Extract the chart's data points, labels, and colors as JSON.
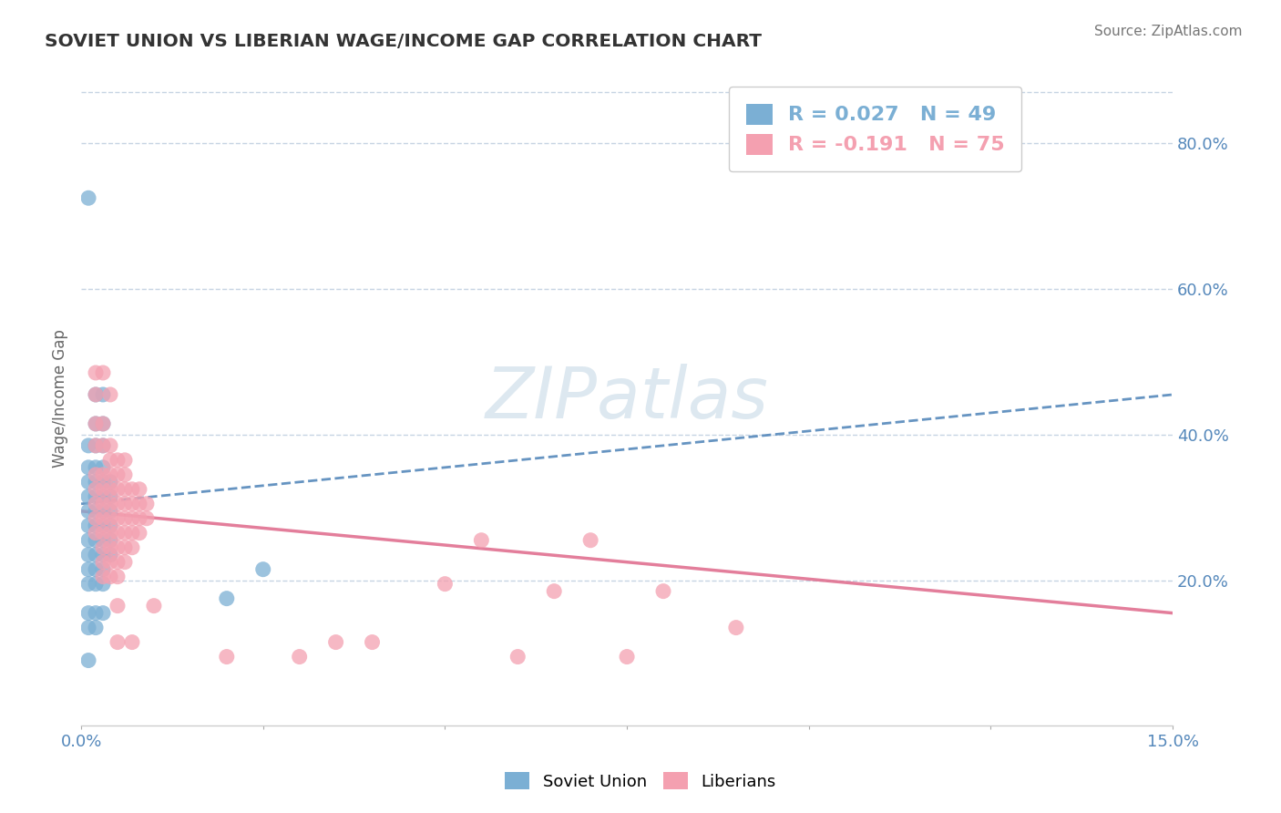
{
  "title": "SOVIET UNION VS LIBERIAN WAGE/INCOME GAP CORRELATION CHART",
  "source": "Source: ZipAtlas.com",
  "ylabel": "Wage/Income Gap",
  "xlim": [
    0.0,
    0.15
  ],
  "ylim": [
    0.0,
    0.9
  ],
  "soviet_color": "#7bafd4",
  "liberian_color": "#f4a0b0",
  "soviet_line_color": "#5588bb",
  "liberian_line_color": "#e07090",
  "soviet_R": 0.027,
  "soviet_N": 49,
  "liberian_R": -0.191,
  "liberian_N": 75,
  "background_color": "#ffffff",
  "grid_color": "#c0d0e0",
  "watermark_color": "#dde8f0",
  "soviet_trend": [
    0.0,
    0.15,
    0.305,
    0.455
  ],
  "liberian_trend": [
    0.0,
    0.15,
    0.295,
    0.155
  ],
  "soviet_points": [
    [
      0.001,
      0.725
    ],
    [
      0.002,
      0.455
    ],
    [
      0.003,
      0.455
    ],
    [
      0.002,
      0.415
    ],
    [
      0.003,
      0.415
    ],
    [
      0.001,
      0.385
    ],
    [
      0.002,
      0.385
    ],
    [
      0.003,
      0.385
    ],
    [
      0.001,
      0.355
    ],
    [
      0.002,
      0.355
    ],
    [
      0.003,
      0.355
    ],
    [
      0.001,
      0.335
    ],
    [
      0.002,
      0.335
    ],
    [
      0.003,
      0.335
    ],
    [
      0.004,
      0.335
    ],
    [
      0.001,
      0.315
    ],
    [
      0.002,
      0.315
    ],
    [
      0.003,
      0.315
    ],
    [
      0.004,
      0.315
    ],
    [
      0.001,
      0.295
    ],
    [
      0.002,
      0.295
    ],
    [
      0.003,
      0.295
    ],
    [
      0.004,
      0.295
    ],
    [
      0.001,
      0.275
    ],
    [
      0.002,
      0.275
    ],
    [
      0.003,
      0.275
    ],
    [
      0.004,
      0.275
    ],
    [
      0.001,
      0.255
    ],
    [
      0.002,
      0.255
    ],
    [
      0.003,
      0.255
    ],
    [
      0.004,
      0.255
    ],
    [
      0.001,
      0.235
    ],
    [
      0.002,
      0.235
    ],
    [
      0.003,
      0.235
    ],
    [
      0.004,
      0.235
    ],
    [
      0.001,
      0.215
    ],
    [
      0.002,
      0.215
    ],
    [
      0.003,
      0.215
    ],
    [
      0.001,
      0.195
    ],
    [
      0.002,
      0.195
    ],
    [
      0.003,
      0.195
    ],
    [
      0.02,
      0.175
    ],
    [
      0.001,
      0.155
    ],
    [
      0.002,
      0.155
    ],
    [
      0.003,
      0.155
    ],
    [
      0.001,
      0.135
    ],
    [
      0.002,
      0.135
    ],
    [
      0.001,
      0.09
    ],
    [
      0.025,
      0.215
    ]
  ],
  "liberian_points": [
    [
      0.002,
      0.485
    ],
    [
      0.003,
      0.485
    ],
    [
      0.002,
      0.455
    ],
    [
      0.004,
      0.455
    ],
    [
      0.002,
      0.415
    ],
    [
      0.003,
      0.415
    ],
    [
      0.002,
      0.385
    ],
    [
      0.003,
      0.385
    ],
    [
      0.004,
      0.385
    ],
    [
      0.004,
      0.365
    ],
    [
      0.005,
      0.365
    ],
    [
      0.006,
      0.365
    ],
    [
      0.002,
      0.345
    ],
    [
      0.003,
      0.345
    ],
    [
      0.004,
      0.345
    ],
    [
      0.005,
      0.345
    ],
    [
      0.006,
      0.345
    ],
    [
      0.002,
      0.325
    ],
    [
      0.003,
      0.325
    ],
    [
      0.004,
      0.325
    ],
    [
      0.005,
      0.325
    ],
    [
      0.006,
      0.325
    ],
    [
      0.007,
      0.325
    ],
    [
      0.008,
      0.325
    ],
    [
      0.002,
      0.305
    ],
    [
      0.003,
      0.305
    ],
    [
      0.004,
      0.305
    ],
    [
      0.005,
      0.305
    ],
    [
      0.006,
      0.305
    ],
    [
      0.007,
      0.305
    ],
    [
      0.008,
      0.305
    ],
    [
      0.009,
      0.305
    ],
    [
      0.002,
      0.285
    ],
    [
      0.003,
      0.285
    ],
    [
      0.004,
      0.285
    ],
    [
      0.005,
      0.285
    ],
    [
      0.006,
      0.285
    ],
    [
      0.007,
      0.285
    ],
    [
      0.008,
      0.285
    ],
    [
      0.009,
      0.285
    ],
    [
      0.002,
      0.265
    ],
    [
      0.003,
      0.265
    ],
    [
      0.004,
      0.265
    ],
    [
      0.005,
      0.265
    ],
    [
      0.006,
      0.265
    ],
    [
      0.007,
      0.265
    ],
    [
      0.008,
      0.265
    ],
    [
      0.003,
      0.245
    ],
    [
      0.004,
      0.245
    ],
    [
      0.005,
      0.245
    ],
    [
      0.006,
      0.245
    ],
    [
      0.007,
      0.245
    ],
    [
      0.003,
      0.225
    ],
    [
      0.004,
      0.225
    ],
    [
      0.005,
      0.225
    ],
    [
      0.006,
      0.225
    ],
    [
      0.003,
      0.205
    ],
    [
      0.004,
      0.205
    ],
    [
      0.005,
      0.205
    ],
    [
      0.055,
      0.255
    ],
    [
      0.07,
      0.255
    ],
    [
      0.05,
      0.195
    ],
    [
      0.065,
      0.185
    ],
    [
      0.08,
      0.185
    ],
    [
      0.005,
      0.165
    ],
    [
      0.01,
      0.165
    ],
    [
      0.09,
      0.135
    ],
    [
      0.005,
      0.115
    ],
    [
      0.007,
      0.115
    ],
    [
      0.035,
      0.115
    ],
    [
      0.04,
      0.115
    ],
    [
      0.02,
      0.095
    ],
    [
      0.03,
      0.095
    ],
    [
      0.06,
      0.095
    ],
    [
      0.075,
      0.095
    ]
  ]
}
